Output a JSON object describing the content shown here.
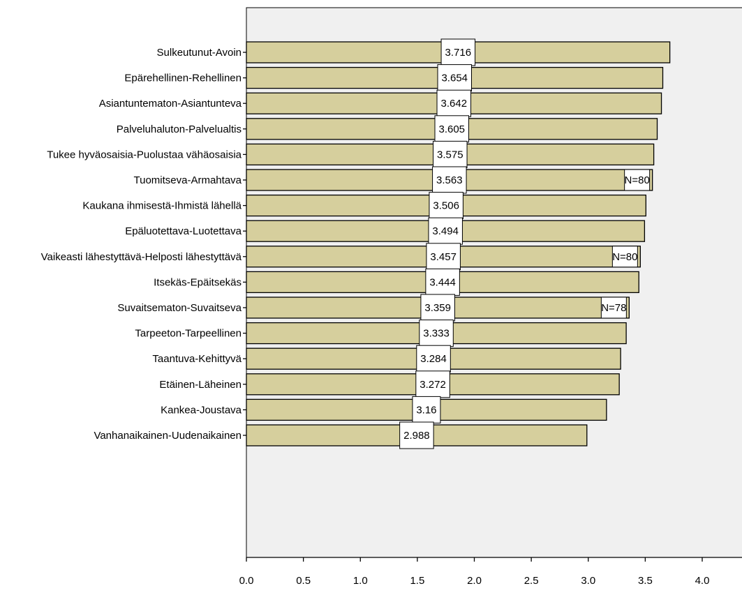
{
  "chart_data": {
    "type": "bar",
    "orientation": "horizontal",
    "categories": [
      "Sulkeutunut-Avoin",
      "Epärehellinen-Rehellinen",
      "Asiantuntematon-Asiantunteva",
      "Palveluhaluton-Palvelualtis",
      "Tukee hyväosaisia-Puolustaa vähäosaisia",
      "Tuomitseva-Armahtava",
      "Kaukana ihmisestä-Ihmistä lähellä",
      "Epäluotettava-Luotettava",
      "Vaikeasti lähestyttävä-Helposti lähestyttävä",
      "Itsekäs-Epäitsekäs",
      "Suvaitsematon-Suvaitseva",
      "Tarpeeton-Tarpeellinen",
      "Taantuva-Kehittyvä",
      "Etäinen-Läheinen",
      "Kankea-Joustava",
      "Vanhanaikainen-Uudenaikainen"
    ],
    "values": [
      3.716,
      3.654,
      3.642,
      3.605,
      3.575,
      3.563,
      3.506,
      3.494,
      3.457,
      3.444,
      3.359,
      3.333,
      3.284,
      3.272,
      3.16,
      2.988
    ],
    "value_labels": [
      "3.716",
      "3.654",
      "3.642",
      "3.605",
      "3.575",
      "3.563",
      "3.506",
      "3.494",
      "3.457",
      "3.444",
      "3.359",
      "3.333",
      "3.284",
      "3.272",
      "3.16",
      "2.988"
    ],
    "n_labels": [
      "",
      "",
      "",
      "",
      "",
      "N=80",
      "",
      "",
      "N=80",
      "",
      "N=78",
      "",
      "",
      "",
      "",
      ""
    ],
    "xticks": [
      "0.0",
      "0.5",
      "1.0",
      "1.5",
      "2.0",
      "2.5",
      "3.0",
      "3.5",
      "4.0"
    ],
    "xlim": [
      0,
      4.3
    ],
    "title": "",
    "xlabel": "",
    "ylabel": "",
    "grid": false,
    "colors": {
      "bar_fill": "#d6cf9d",
      "bar_stroke": "#000000",
      "plot_background": "#f0f0f0",
      "label_box": "#ffffff"
    }
  }
}
